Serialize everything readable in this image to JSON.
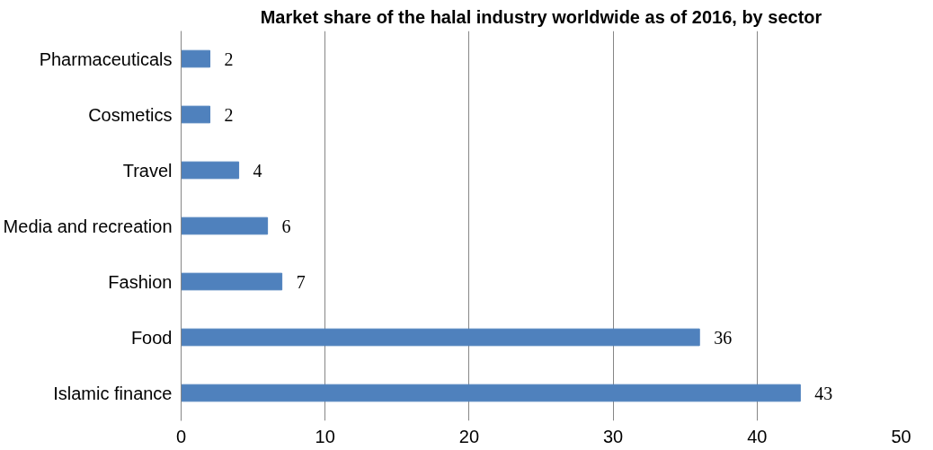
{
  "chart_data": {
    "type": "bar",
    "orientation": "horizontal",
    "title": "Market share of the halal industry worldwide as of 2016, by sector",
    "categories": [
      "Pharmaceuticals",
      "Cosmetics",
      "Travel",
      "Media and recreation",
      "Fashion",
      "Food",
      "Islamic finance"
    ],
    "values": [
      2,
      2,
      4,
      6,
      7,
      36,
      43
    ],
    "color": "#4f81bd",
    "xlim": [
      0,
      50
    ],
    "xticks": [
      0,
      10,
      20,
      30,
      40,
      50
    ],
    "grid": "x",
    "data_labels": true
  }
}
